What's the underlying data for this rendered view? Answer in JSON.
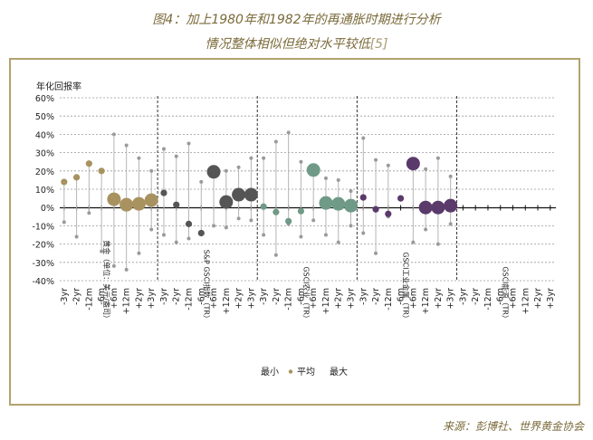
{
  "figure": {
    "title_line1": "图4：加上1980年和1982年的再通胀时期进行分析",
    "title_line2": "情况整体相似但绝对水平较低",
    "title_ref": "[5]",
    "source": "来源：彭博社、世界黄金协会"
  },
  "chart_data": {
    "type": "scatter",
    "ylabel": "年化回报率",
    "ylim": [
      -40,
      60
    ],
    "yticks": [
      "60%",
      "50%",
      "40%",
      "30%",
      "20%",
      "10%",
      "0%",
      "-10%",
      "-20%",
      "-30%",
      "-40%"
    ],
    "ytick_values": [
      60,
      50,
      40,
      30,
      20,
      10,
      0,
      -10,
      -20,
      -30,
      -40
    ],
    "categories": [
      "-3yr",
      "-2yr",
      "-12m",
      "-6m",
      "+6m",
      "+12m",
      "+2yr",
      "+3yr"
    ],
    "legend": {
      "min": "最小",
      "avg": "平均",
      "max": "最大"
    },
    "series": [
      {
        "name": "黄金（单位：美元/盎司）",
        "color": "#a89260",
        "values": [
          14,
          16.5,
          24,
          20,
          4.5,
          1.5,
          2,
          4
        ],
        "min": [
          -8,
          -16,
          -3,
          -24,
          -32,
          -34,
          -25,
          -12
        ],
        "max": [
          14,
          16.5,
          24,
          20,
          40,
          34,
          27,
          20
        ]
      },
      {
        "name": "S&P GSCI指数（TR）",
        "color": "#555555",
        "values": [
          8,
          1.5,
          -9,
          -14,
          19.5,
          3,
          7,
          7
        ],
        "min": [
          -15,
          -19,
          -17,
          -14,
          -10,
          -11,
          -6,
          -7
        ],
        "max": [
          32,
          28,
          35,
          14,
          19.5,
          20,
          22,
          27
        ]
      },
      {
        "name": "GSCI农业（TR）",
        "color": "#6e9a87",
        "values": [
          0.5,
          -2.5,
          -7.5,
          -2,
          20.5,
          2.5,
          2,
          1
        ],
        "min": [
          -15,
          -26,
          -9,
          -16,
          -7,
          -15,
          -19,
          -10
        ],
        "max": [
          27,
          36,
          41,
          25,
          20.5,
          16,
          15,
          9
        ]
      },
      {
        "name": "GSCI工业金属（TR）",
        "color": "#5a3a6a",
        "values": [
          5.5,
          -1,
          -3.5,
          5,
          24,
          0,
          0,
          1
        ],
        "min": [
          -14,
          -25,
          -5,
          5,
          -19,
          -12,
          -20,
          -9
        ],
        "max": [
          38,
          26,
          23,
          5,
          24,
          21,
          27,
          17
        ]
      },
      {
        "name": "GSCI能源（TR）",
        "color": "#888888",
        "values": [
          null,
          null,
          null,
          null,
          null,
          null,
          null,
          null
        ],
        "min": [
          null,
          null,
          null,
          null,
          null,
          null,
          null,
          null
        ],
        "max": [
          null,
          null,
          null,
          null,
          null,
          null,
          null,
          null
        ]
      }
    ]
  }
}
